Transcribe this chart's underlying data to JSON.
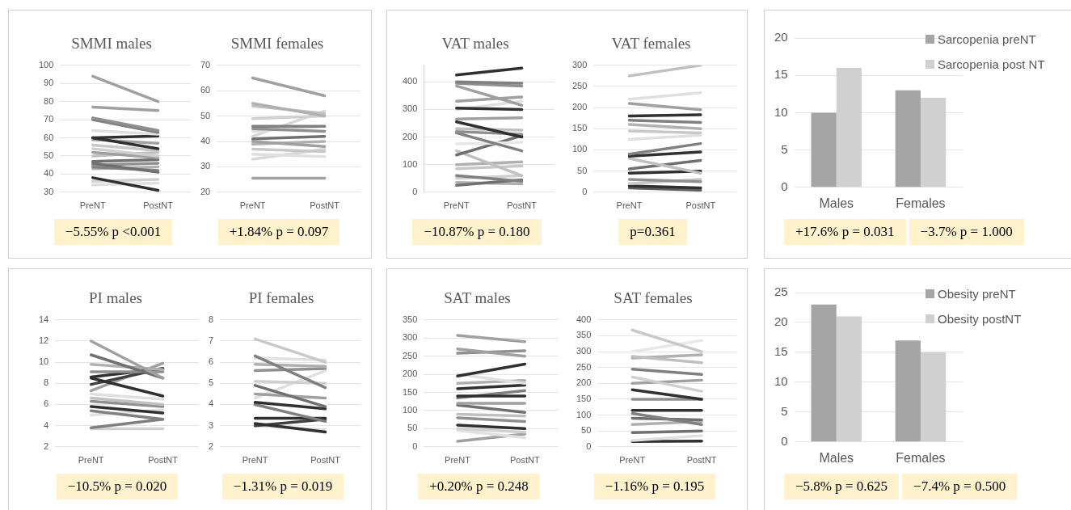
{
  "chart_data": [
    {
      "type": "line",
      "title": "SMMI males",
      "categories": [
        "PreNT",
        "PostNT"
      ],
      "ylim": [
        30,
        100
      ],
      "yticks": [
        30,
        40,
        50,
        60,
        70,
        80,
        90,
        100
      ],
      "grid": "y",
      "legend": false,
      "marker": "none",
      "annotations": [
        "−5.55% p <0.001"
      ],
      "series": [
        {
          "color": "#a0a0a0",
          "values": [
            94,
            80
          ]
        },
        {
          "color": "#a0a0a0",
          "values": [
            77,
            75
          ]
        },
        {
          "color": "#909090",
          "values": [
            71,
            64
          ]
        },
        {
          "color": "#808080",
          "values": [
            70,
            63
          ]
        },
        {
          "color": "#e0e0e0",
          "values": [
            64,
            62
          ]
        },
        {
          "color": "#303030",
          "values": [
            60,
            61
          ]
        },
        {
          "color": "#303030",
          "values": [
            60,
            54
          ]
        },
        {
          "color": "#a0a0a0",
          "values": [
            59,
            57
          ]
        },
        {
          "color": "#c8c8c8",
          "values": [
            56,
            53
          ]
        },
        {
          "color": "#d0d0d0",
          "values": [
            54,
            50
          ]
        },
        {
          "color": "#a0a0a0",
          "values": [
            52,
            49
          ]
        },
        {
          "color": "#c0c0c0",
          "values": [
            50,
            52
          ]
        },
        {
          "color": "#707070",
          "values": [
            47,
            48
          ]
        },
        {
          "color": "#707070",
          "values": [
            46,
            41
          ]
        },
        {
          "color": "#909090",
          "values": [
            45,
            46
          ]
        },
        {
          "color": "#808080",
          "values": [
            44,
            42
          ]
        },
        {
          "color": "#b0b0b0",
          "values": [
            43,
            44
          ]
        },
        {
          "color": "#303030",
          "values": [
            38,
            31
          ]
        },
        {
          "color": "#d0d0d0",
          "values": [
            36,
            37
          ]
        },
        {
          "color": "#e0e0e0",
          "values": [
            34,
            35
          ]
        }
      ]
    },
    {
      "type": "line",
      "title": "SMMI females",
      "categories": [
        "PreNT",
        "PostNT"
      ],
      "ylim": [
        20,
        70
      ],
      "yticks": [
        20,
        30,
        40,
        50,
        60,
        70
      ],
      "grid": "y",
      "legend": false,
      "marker": "none",
      "annotations": [
        "+1.84% p = 0.097"
      ],
      "series": [
        {
          "color": "#a0a0a0",
          "values": [
            65,
            58
          ]
        },
        {
          "color": "#b0b0b0",
          "values": [
            55,
            50
          ]
        },
        {
          "color": "#c0c0c0",
          "values": [
            54,
            51
          ]
        },
        {
          "color": "#d0d0d0",
          "values": [
            49,
            50
          ]
        },
        {
          "color": "#808080",
          "values": [
            46,
            46
          ]
        },
        {
          "color": "#909090",
          "values": [
            45,
            44
          ]
        },
        {
          "color": "#e0e0e0",
          "values": [
            44,
            46
          ]
        },
        {
          "color": "#d8d8d8",
          "values": [
            42,
            52
          ]
        },
        {
          "color": "#707070",
          "values": [
            41,
            42
          ]
        },
        {
          "color": "#a0a0a0",
          "values": [
            40,
            38
          ]
        },
        {
          "color": "#b0b0b0",
          "values": [
            39,
            40
          ]
        },
        {
          "color": "#c8c8c8",
          "values": [
            37,
            36
          ]
        },
        {
          "color": "#e0e0e0",
          "values": [
            35,
            34
          ]
        },
        {
          "color": "#d8d8d8",
          "values": [
            33,
            37
          ]
        },
        {
          "color": "#a0a0a0",
          "values": [
            25.5,
            25.5
          ]
        }
      ]
    },
    {
      "type": "line",
      "title": "VAT males",
      "categories": [
        "PreNT",
        "PostNT"
      ],
      "ylim": [
        0,
        460
      ],
      "yticks": [
        0,
        100,
        200,
        300,
        400
      ],
      "grid": "y",
      "legend": false,
      "marker": "none",
      "annotations": [
        "−10.87% p = 0.180"
      ],
      "series": [
        {
          "color": "#303030",
          "values": [
            425,
            450
          ]
        },
        {
          "color": "#808080",
          "values": [
            400,
            395
          ]
        },
        {
          "color": "#909090",
          "values": [
            395,
            385
          ]
        },
        {
          "color": "#a0a0a0",
          "values": [
            385,
            315
          ]
        },
        {
          "color": "#a0a0a0",
          "values": [
            330,
            345
          ]
        },
        {
          "color": "#303030",
          "values": [
            305,
            300
          ]
        },
        {
          "color": "#e0e0e0",
          "values": [
            300,
            330
          ]
        },
        {
          "color": "#a0a0a0",
          "values": [
            265,
            270
          ]
        },
        {
          "color": "#303030",
          "values": [
            255,
            200
          ]
        },
        {
          "color": "#c0c0c0",
          "values": [
            230,
            225
          ]
        },
        {
          "color": "#909090",
          "values": [
            220,
            210
          ]
        },
        {
          "color": "#808080",
          "values": [
            215,
            150
          ]
        },
        {
          "color": "#e8e8e8",
          "values": [
            175,
            180
          ]
        },
        {
          "color": "#707070",
          "values": [
            135,
            205
          ]
        },
        {
          "color": "#c0c0c0",
          "values": [
            150,
            60
          ]
        },
        {
          "color": "#b0b0b0",
          "values": [
            100,
            110
          ]
        },
        {
          "color": "#c8c8c8",
          "values": [
            85,
            95
          ]
        },
        {
          "color": "#808080",
          "values": [
            60,
            40
          ]
        },
        {
          "color": "#d0d0d0",
          "values": [
            50,
            60
          ]
        },
        {
          "color": "#707070",
          "values": [
            25,
            45
          ]
        },
        {
          "color": "#b0b0b0",
          "values": [
            35,
            30
          ]
        }
      ]
    },
    {
      "type": "line",
      "title": "VAT females",
      "categories": [
        "PreNT",
        "PostNT"
      ],
      "ylim": [
        0,
        300
      ],
      "yticks": [
        0,
        50,
        100,
        150,
        200,
        250,
        300
      ],
      "grid": "y",
      "legend": false,
      "marker": "none",
      "annotations": [
        "p=0.361"
      ],
      "series": [
        {
          "color": "#c0c0c0",
          "values": [
            275,
            300
          ]
        },
        {
          "color": "#e0e0e0",
          "values": [
            220,
            235
          ]
        },
        {
          "color": "#a0a0a0",
          "values": [
            210,
            195
          ]
        },
        {
          "color": "#303030",
          "values": [
            180,
            183
          ]
        },
        {
          "color": "#808080",
          "values": [
            170,
            165
          ]
        },
        {
          "color": "#b0b0b0",
          "values": [
            160,
            150
          ]
        },
        {
          "color": "#c8c8c8",
          "values": [
            145,
            140
          ]
        },
        {
          "color": "#e0e0e0",
          "values": [
            125,
            135
          ]
        },
        {
          "color": "#808080",
          "values": [
            90,
            115
          ]
        },
        {
          "color": "#303030",
          "values": [
            85,
            95
          ]
        },
        {
          "color": "#c0c0c0",
          "values": [
            80,
            45
          ]
        },
        {
          "color": "#707070",
          "values": [
            55,
            75
          ]
        },
        {
          "color": "#303030",
          "values": [
            45,
            50
          ]
        },
        {
          "color": "#909090",
          "values": [
            30,
            25
          ]
        },
        {
          "color": "#c8c8c8",
          "values": [
            20,
            30
          ]
        },
        {
          "color": "#303030",
          "values": [
            15,
            10
          ]
        },
        {
          "color": "#606060",
          "values": [
            10,
            5
          ]
        }
      ]
    },
    {
      "type": "bar",
      "categories": [
        "Males",
        "Females"
      ],
      "ylim": [
        0,
        20
      ],
      "yticks": [
        0,
        5,
        10,
        15,
        20
      ],
      "grid": "y",
      "legend": "top right",
      "annotations": [
        "+17.6% p = 0.031",
        "−3.7% p = 1.000"
      ],
      "series": [
        {
          "name": "Sarcopenia preNT",
          "color": "#a5a5a5",
          "values": [
            10,
            13
          ]
        },
        {
          "name": "Sarcopenia post NT",
          "color": "#d0d0d0",
          "values": [
            16,
            12
          ]
        }
      ]
    },
    {
      "type": "line",
      "title": "PI males",
      "categories": [
        "PreNT",
        "PostNT"
      ],
      "ylim": [
        2,
        14
      ],
      "yticks": [
        2,
        4,
        6,
        8,
        10,
        12,
        14
      ],
      "grid": "y",
      "legend": false,
      "marker": "none",
      "annotations": [
        "−10.5% p = 0.020"
      ],
      "series": [
        {
          "color": "#a0a0a0",
          "values": [
            12,
            8.5
          ]
        },
        {
          "color": "#707070",
          "values": [
            10.7,
            8.5
          ]
        },
        {
          "color": "#b0b0b0",
          "values": [
            9.8,
            9.3
          ]
        },
        {
          "color": "#909090",
          "values": [
            9.1,
            9.1
          ]
        },
        {
          "color": "#303030",
          "values": [
            8.6,
            9.4
          ]
        },
        {
          "color": "#303030",
          "values": [
            8.5,
            6.8
          ]
        },
        {
          "color": "#404040",
          "values": [
            7.9,
            9.4
          ]
        },
        {
          "color": "#a0a0a0",
          "values": [
            7.3,
            9.9
          ]
        },
        {
          "color": "#e0e0e0",
          "values": [
            7,
            6.5
          ]
        },
        {
          "color": "#c0c0c0",
          "values": [
            6.6,
            6
          ]
        },
        {
          "color": "#909090",
          "values": [
            6.3,
            5.8
          ]
        },
        {
          "color": "#303030",
          "values": [
            5.8,
            5.2
          ]
        },
        {
          "color": "#808080",
          "values": [
            5.4,
            4.6
          ]
        },
        {
          "color": "#e0e0e0",
          "values": [
            5,
            5.5
          ]
        },
        {
          "color": "#808080",
          "values": [
            3.8,
            4.6
          ]
        },
        {
          "color": "#d0d0d0",
          "values": [
            3.7,
            3.7
          ]
        }
      ]
    },
    {
      "type": "line",
      "title": "PI females",
      "categories": [
        "PreNT",
        "PostNT"
      ],
      "ylim": [
        2,
        8
      ],
      "yticks": [
        2,
        3,
        4,
        5,
        6,
        7,
        8
      ],
      "grid": "y",
      "legend": false,
      "marker": "none",
      "annotations": [
        "−1.31% p = 0.019"
      ],
      "series": [
        {
          "color": "#c8c8c8",
          "values": [
            7.1,
            6
          ]
        },
        {
          "color": "#808080",
          "values": [
            6.3,
            4.8
          ]
        },
        {
          "color": "#e0e0e0",
          "values": [
            6.2,
            6.1
          ]
        },
        {
          "color": "#b0b0b0",
          "values": [
            5.9,
            5.8
          ]
        },
        {
          "color": "#909090",
          "values": [
            5.6,
            5.7
          ]
        },
        {
          "color": "#d0d0d0",
          "values": [
            5.1,
            5
          ]
        },
        {
          "color": "#707070",
          "values": [
            4.9,
            3.9
          ]
        },
        {
          "color": "#a0a0a0",
          "values": [
            4.5,
            4.3
          ]
        },
        {
          "color": "#e0e0e0",
          "values": [
            4.3,
            5.6
          ]
        },
        {
          "color": "#303030",
          "values": [
            4.1,
            3.8
          ]
        },
        {
          "color": "#808080",
          "values": [
            4,
            3.2
          ]
        },
        {
          "color": "#303030",
          "values": [
            3.35,
            3.35
          ]
        },
        {
          "color": "#303030",
          "values": [
            3.1,
            2.7
          ]
        },
        {
          "color": "#404040",
          "values": [
            3,
            3.3
          ]
        },
        {
          "color": "#e0e0e0",
          "values": [
            3,
            2.8
          ]
        }
      ]
    },
    {
      "type": "line",
      "title": "SAT males",
      "categories": [
        "PreNT",
        "PostNT"
      ],
      "ylim": [
        0,
        350
      ],
      "yticks": [
        0,
        50,
        100,
        150,
        200,
        250,
        300,
        350
      ],
      "grid": "y",
      "legend": false,
      "marker": "none",
      "annotations": [
        "+0.20% p = 0.248"
      ],
      "series": [
        {
          "color": "#a0a0a0",
          "values": [
            307,
            290
          ]
        },
        {
          "color": "#a0a0a0",
          "values": [
            270,
            250
          ]
        },
        {
          "color": "#909090",
          "values": [
            258,
            265
          ]
        },
        {
          "color": "#303030",
          "values": [
            195,
            228
          ]
        },
        {
          "color": "#e0e0e0",
          "values": [
            200,
            175
          ]
        },
        {
          "color": "#b0b0b0",
          "values": [
            175,
            183
          ]
        },
        {
          "color": "#303030",
          "values": [
            160,
            170
          ]
        },
        {
          "color": "#303030",
          "values": [
            140,
            140
          ]
        },
        {
          "color": "#808080",
          "values": [
            135,
            155
          ]
        },
        {
          "color": "#a0a0a0",
          "values": [
            120,
            120
          ]
        },
        {
          "color": "#707070",
          "values": [
            115,
            95
          ]
        },
        {
          "color": "#c0c0c0",
          "values": [
            90,
            85
          ]
        },
        {
          "color": "#909090",
          "values": [
            80,
            70
          ]
        },
        {
          "color": "#303030",
          "values": [
            60,
            50
          ]
        },
        {
          "color": "#d0d0d0",
          "values": [
            50,
            40
          ]
        },
        {
          "color": "#e0e0e0",
          "values": [
            45,
            25
          ]
        },
        {
          "color": "#a0a0a0",
          "values": [
            15,
            35
          ]
        }
      ]
    },
    {
      "type": "line",
      "title": "SAT females",
      "categories": [
        "PreNT",
        "PostNT"
      ],
      "ylim": [
        0,
        400
      ],
      "yticks": [
        0,
        50,
        100,
        150,
        200,
        250,
        300,
        350,
        400
      ],
      "grid": "y",
      "legend": false,
      "marker": "none",
      "annotations": [
        "−1.16% p = 0.195"
      ],
      "series": [
        {
          "color": "#c8c8c8",
          "values": [
            368,
            300
          ]
        },
        {
          "color": "#e8e8e8",
          "values": [
            300,
            335
          ]
        },
        {
          "color": "#c0c0c0",
          "values": [
            285,
            265
          ]
        },
        {
          "color": "#b0b0b0",
          "values": [
            280,
            290
          ]
        },
        {
          "color": "#808080",
          "values": [
            245,
            228
          ]
        },
        {
          "color": "#d0d0d0",
          "values": [
            220,
            175
          ]
        },
        {
          "color": "#a0a0a0",
          "values": [
            200,
            210
          ]
        },
        {
          "color": "#303030",
          "values": [
            180,
            150
          ]
        },
        {
          "color": "#909090",
          "values": [
            150,
            150
          ]
        },
        {
          "color": "#303030",
          "values": [
            115,
            115
          ]
        },
        {
          "color": "#808080",
          "values": [
            105,
            70
          ]
        },
        {
          "color": "#707070",
          "values": [
            90,
            85
          ]
        },
        {
          "color": "#b0b0b0",
          "values": [
            70,
            80
          ]
        },
        {
          "color": "#707070",
          "values": [
            45,
            50
          ]
        },
        {
          "color": "#e0e0e0",
          "values": [
            20,
            35
          ]
        },
        {
          "color": "#303030",
          "values": [
            17,
            18
          ]
        }
      ]
    },
    {
      "type": "bar",
      "categories": [
        "Males",
        "Females"
      ],
      "ylim": [
        0,
        25
      ],
      "yticks": [
        0,
        5,
        10,
        15,
        20,
        25
      ],
      "grid": "y",
      "legend": "top right",
      "annotations": [
        "−5.8% p = 0.625",
        "−7.4% p = 0.500"
      ],
      "series": [
        {
          "name": "Obesity preNT",
          "color": "#a5a5a5",
          "values": [
            23,
            17
          ]
        },
        {
          "name": "Obesity postNT",
          "color": "#d0d0d0",
          "values": [
            21,
            15
          ]
        }
      ]
    }
  ]
}
